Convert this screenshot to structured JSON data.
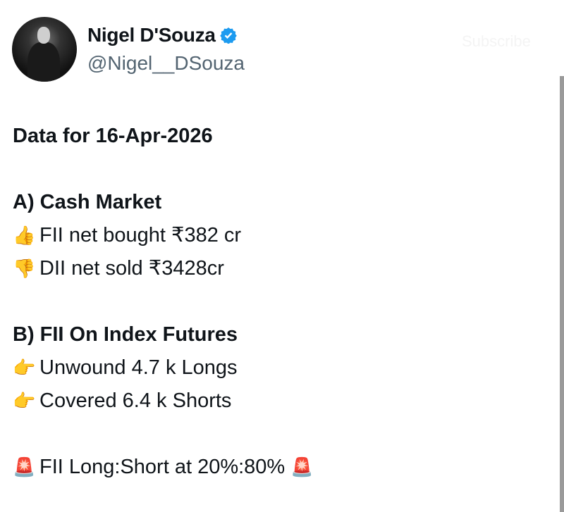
{
  "author": {
    "name": "Nigel D'Souza",
    "handle": "@Nigel__DSouza",
    "verified": true,
    "badge_color": "#1d9bf0",
    "ghost_button": "Subscribe"
  },
  "tweet": {
    "date_line": "Data for 16-Apr-2026",
    "section_a": {
      "title": "A) Cash Market",
      "items": [
        {
          "icon": "thumbs-up",
          "emoji": "👍",
          "text": "FII net bought ₹382 cr"
        },
        {
          "icon": "thumbs-down",
          "emoji": "👎",
          "text": "DII net sold ₹3428cr"
        }
      ]
    },
    "section_b": {
      "title": "B) FII On Index Futures",
      "items": [
        {
          "icon": "pointing-right",
          "emoji": "👉",
          "text": "Unwound 4.7 k Longs"
        },
        {
          "icon": "pointing-right",
          "emoji": "👉",
          "text": "Covered 6.4 k Shorts"
        }
      ]
    },
    "ratio": {
      "icon": "rotating-light",
      "emoji": "🚨",
      "text": "FII Long:Short at 20%:80%"
    }
  }
}
